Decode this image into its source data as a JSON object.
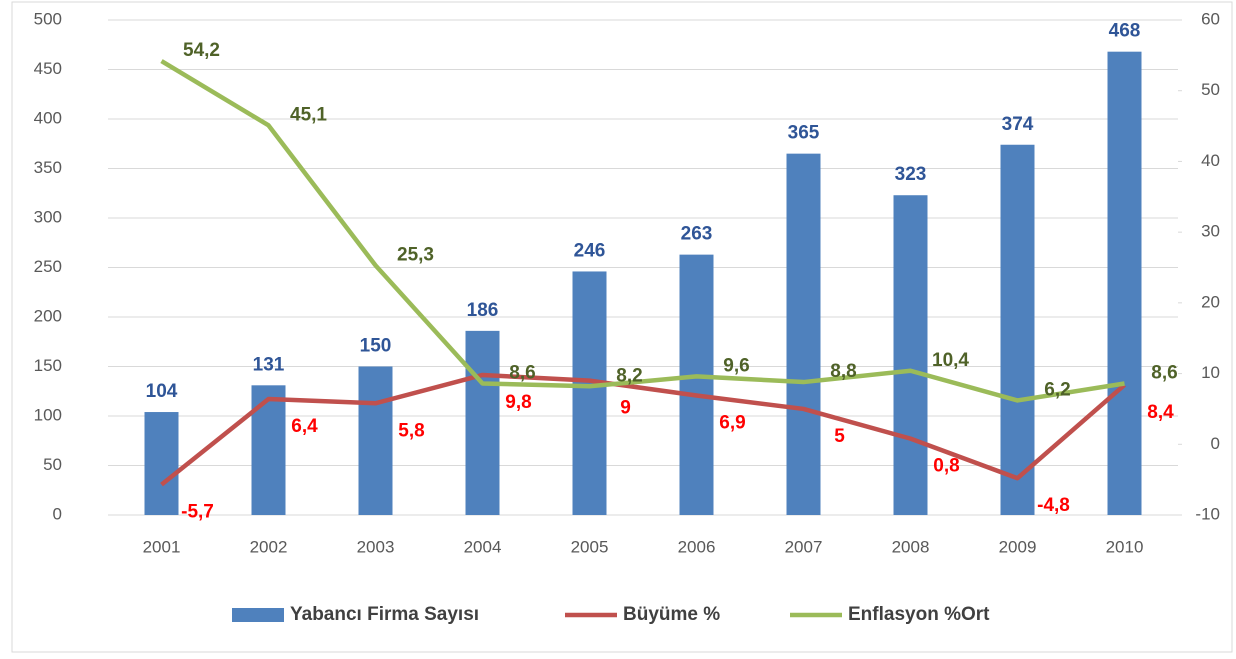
{
  "chart_data": {
    "type": "bar-line",
    "categories": [
      "2001",
      "2002",
      "2003",
      "2004",
      "2005",
      "2006",
      "2007",
      "2008",
      "2009",
      "2010"
    ],
    "series": [
      {
        "name": "Yabancı Firma Sayısı",
        "type": "bar",
        "color": "#4f81bd",
        "axis": "y",
        "values": [
          104,
          131,
          150,
          186,
          246,
          263,
          365,
          323,
          374,
          468
        ]
      },
      {
        "name": "Büyüme %",
        "type": "line",
        "color": "#c0504d",
        "axis": "y2",
        "values": [
          -5.7,
          6.4,
          5.8,
          9.8,
          9,
          6.9,
          5,
          0.8,
          -4.8,
          8.4
        ],
        "value_labels": [
          "-5,7",
          "6,4",
          "5,8",
          "9,8",
          "9",
          "6,9",
          "5",
          "0,8",
          "-4,8",
          "8,4"
        ]
      },
      {
        "name": "Enflasyon %Ort",
        "type": "line",
        "color": "#9bbb59",
        "axis": "y2",
        "values": [
          54.2,
          45.1,
          25.3,
          8.6,
          8.2,
          9.6,
          8.8,
          10.4,
          6.2,
          8.6
        ],
        "value_labels": [
          "54,2",
          "45,1",
          "25,3",
          "8,6",
          "8,2",
          "9,6",
          "8,8",
          "10,4",
          "6,2",
          "8,6"
        ]
      }
    ],
    "ylim": [
      0,
      500
    ],
    "yticks": [
      0,
      50,
      100,
      150,
      200,
      250,
      300,
      350,
      400,
      450,
      500
    ],
    "y2lim": [
      -10,
      60
    ],
    "y2ticks": [
      -10,
      0,
      10,
      20,
      30,
      40,
      50,
      60
    ],
    "grid": true,
    "legend": "bottom"
  }
}
